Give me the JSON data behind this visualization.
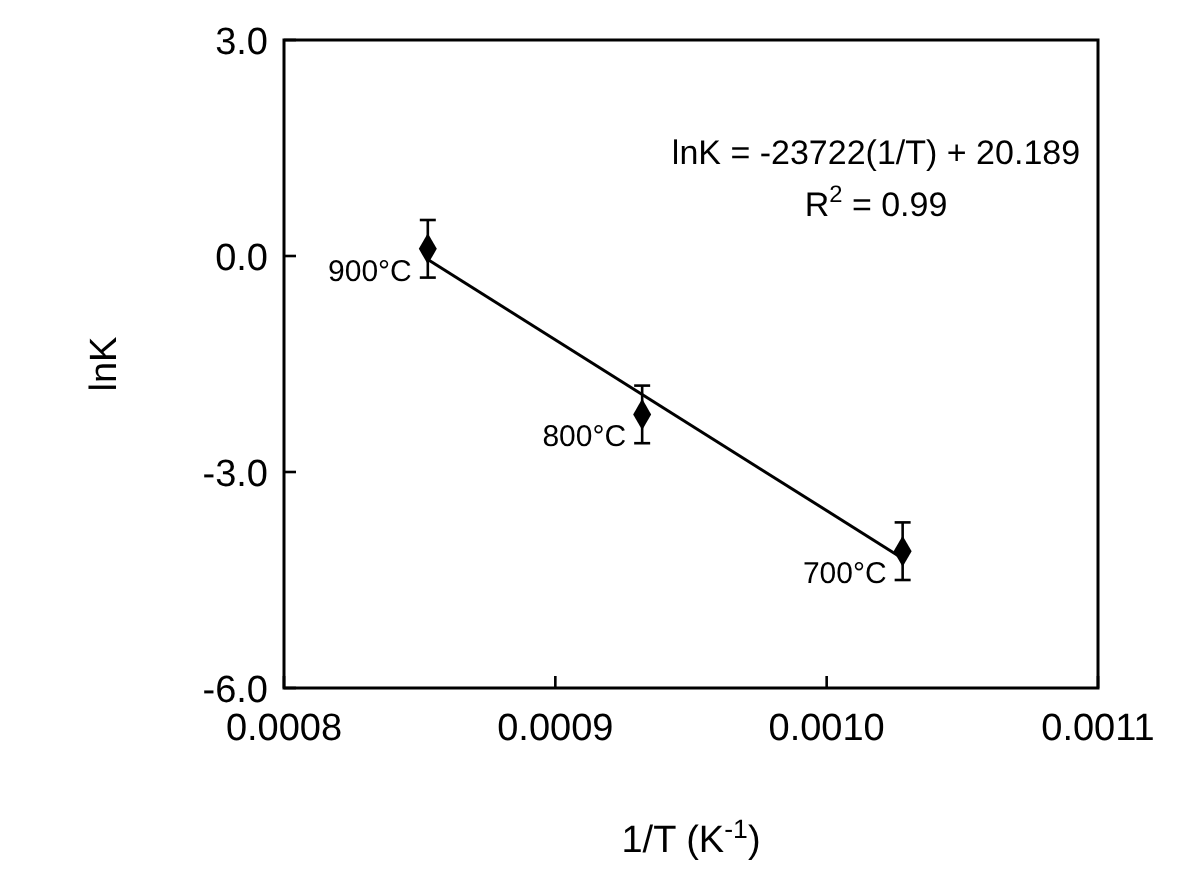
{
  "chart_data": {
    "type": "scatter",
    "xlabel": "1/T (K$^{-1}$)",
    "ylabel": "lnK",
    "series": [
      {
        "color": "#000000",
        "marker": "diamond",
        "x": [
          0.000853,
          0.000932,
          0.001028
        ],
        "values": [
          0.1,
          -2.2,
          -4.1
        ],
        "errors": [
          0.4,
          0.4,
          0.4
        ]
      },
      {
        "type": "line",
        "color": "#000000",
        "marker": "none",
        "line_style": "solid",
        "x": [
          0.000853,
          0.001028
        ],
        "values": [
          -0.05,
          -4.2
        ]
      }
    ],
    "xlim": [
      0.0008,
      0.0011
    ],
    "xticks": [
      {
        "value": 0.0008,
        "label": "0.0008"
      },
      {
        "value": 0.0009,
        "label": "0.0009"
      },
      {
        "value": 0.001,
        "label": "0.0010"
      },
      {
        "value": 0.0011,
        "label": "0.0011"
      }
    ],
    "ylim": [
      -6,
      3
    ],
    "yticks": [
      {
        "value": -6,
        "label": "-6.0"
      },
      {
        "value": -3,
        "label": "-3.0"
      },
      {
        "value": 0,
        "label": "0.0"
      },
      {
        "value": 3,
        "label": "3.0"
      }
    ],
    "grid": false,
    "annotations": [
      "lnK = -23722(1/T) + 20.189",
      "R$^{2}$ = 0.99",
      {
        "text": "900°C",
        "x": 0.000853,
        "y": 0.1
      },
      {
        "text": "800°C",
        "x": 0.000932,
        "y": -2.2
      },
      {
        "text": "700°C",
        "x": 0.001028,
        "y": -4.1
      }
    ]
  }
}
